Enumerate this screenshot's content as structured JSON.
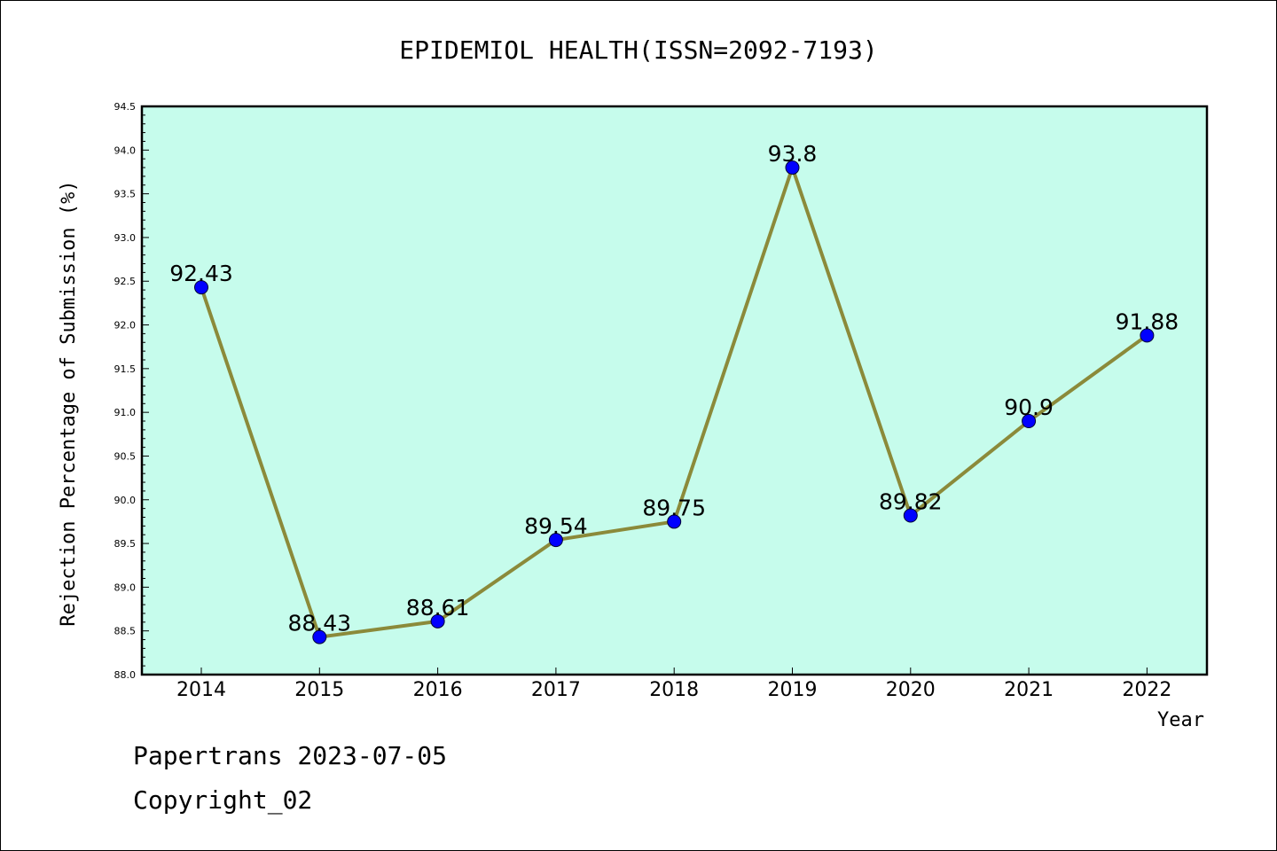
{
  "chart_data": {
    "type": "line",
    "title": "EPIDEMIOL HEALTH(ISSN=2092-7193)",
    "xlabel": "Year",
    "ylabel": "Rejection Percentage of Submission (%)",
    "categories": [
      "2014",
      "2015",
      "2016",
      "2017",
      "2018",
      "2019",
      "2020",
      "2021",
      "2022"
    ],
    "values": [
      92.43,
      88.43,
      88.61,
      89.54,
      89.75,
      93.8,
      89.82,
      90.9,
      91.88
    ],
    "data_labels": [
      "92.43",
      "88.43",
      "88.61",
      "89.54",
      "89.75",
      "93.8",
      "89.82",
      "90.9",
      "91.88"
    ],
    "ylim": [
      88.0,
      94.5
    ],
    "yticks": [
      "88.0",
      "88.5",
      "89.0",
      "89.5",
      "90.0",
      "90.5",
      "91.0",
      "91.5",
      "92.0",
      "92.5",
      "93.0",
      "93.5",
      "94.0",
      "94.5"
    ],
    "grid": false,
    "colors": {
      "plot_background": "#c6fcec",
      "line": "#8b8a3a",
      "marker": "#0000ff"
    }
  },
  "footer": {
    "line1": "Papertrans 2023-07-05",
    "line2": "Copyright_02"
  }
}
